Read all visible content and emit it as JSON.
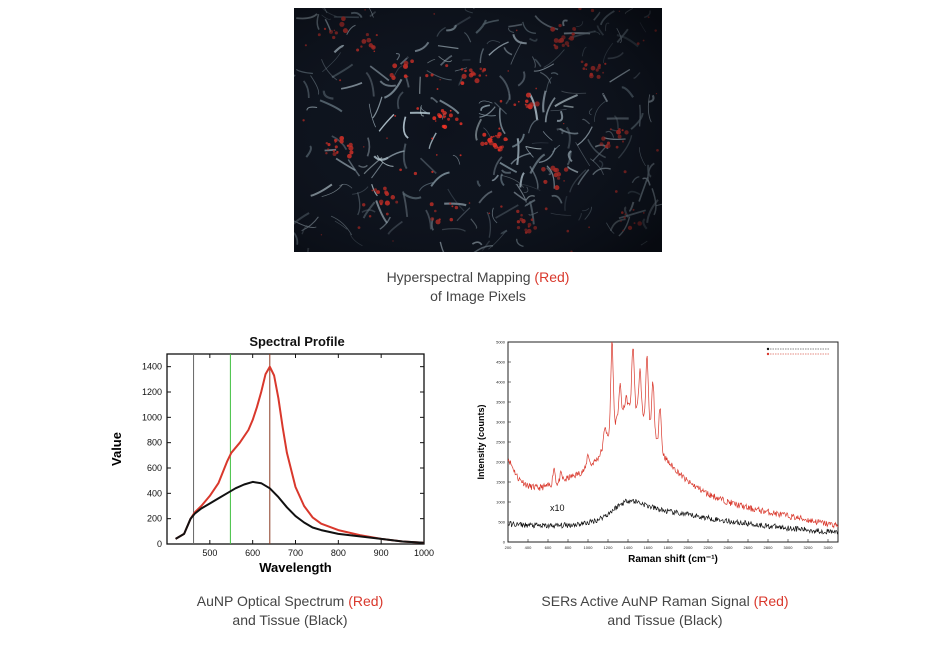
{
  "top_figure": {
    "caption_line1_prefix": "Hyperspectral Mapping ",
    "caption_line1_highlight": "(Red)",
    "caption_line2": "of Image Pixels"
  },
  "left_caption": {
    "line1_prefix": "AuNP Optical Spectrum ",
    "line1_highlight": "(Red)",
    "line2": "and Tissue (Black)"
  },
  "right_caption": {
    "line1_prefix": "SERs Active AuNP Raman Signal ",
    "line1_highlight": "(Red)",
    "line2": "and Tissue (Black)"
  },
  "colors": {
    "red": "#d9382c",
    "black": "#111111",
    "green": "#3fbf3f",
    "brown": "#8a3b22",
    "gray": "#666666"
  },
  "chart_data": [
    {
      "type": "line",
      "title": "Spectral Profile",
      "xlabel": "Wavelength",
      "ylabel": "Value",
      "xlim": [
        400,
        1000
      ],
      "ylim": [
        0,
        1500
      ],
      "xticks": [
        500,
        600,
        700,
        800,
        900,
        1000
      ],
      "yticks": [
        0,
        200,
        400,
        600,
        800,
        1000,
        1200,
        1400
      ],
      "vertical_lines": [
        {
          "x": 462,
          "color": "#666666"
        },
        {
          "x": 548,
          "color": "#3fbf3f"
        },
        {
          "x": 640,
          "color": "#8a3b22"
        }
      ],
      "series": [
        {
          "color": "#d9382c",
          "x": [
            420,
            440,
            455,
            465,
            480,
            500,
            520,
            540,
            550,
            570,
            590,
            600,
            610,
            620,
            630,
            640,
            650,
            660,
            670,
            680,
            700,
            720,
            740,
            760,
            800,
            850,
            900,
            950,
            1000
          ],
          "y": [
            40,
            80,
            200,
            250,
            300,
            380,
            480,
            650,
            720,
            800,
            900,
            980,
            1080,
            1200,
            1340,
            1400,
            1330,
            1150,
            920,
            720,
            450,
            300,
            210,
            160,
            110,
            70,
            40,
            20,
            10
          ]
        },
        {
          "color": "#111111",
          "x": [
            420,
            440,
            455,
            465,
            480,
            500,
            520,
            540,
            560,
            580,
            600,
            620,
            640,
            660,
            680,
            700,
            720,
            740,
            760,
            800,
            850,
            900,
            950,
            1000
          ],
          "y": [
            40,
            80,
            200,
            240,
            280,
            320,
            360,
            400,
            440,
            470,
            490,
            480,
            440,
            370,
            290,
            220,
            170,
            130,
            110,
            80,
            60,
            40,
            20,
            10
          ]
        }
      ]
    },
    {
      "type": "line",
      "xlabel": "Raman shift (cm⁻¹)",
      "ylabel": "Intensity (counts)",
      "annotation": "x10",
      "ylim": [
        0,
        5000
      ],
      "yticks": [
        0,
        500,
        1000,
        1500,
        2000,
        2500,
        3000,
        3500,
        4000,
        4500,
        5000
      ],
      "xlim": [
        200,
        3500
      ],
      "xticks": [
        200,
        400,
        600,
        800,
        1000,
        1200,
        1400,
        1600,
        1800,
        2000,
        2200,
        2400,
        2600,
        2800,
        3000,
        3200,
        3400
      ],
      "legend_position": "top-right",
      "series": [
        {
          "color": "#d9382c",
          "x": [
            200,
            300,
            400,
            500,
            600,
            700,
            800,
            900,
            1000,
            1100,
            1200,
            1300,
            1400,
            1500,
            1600,
            1700,
            1800,
            1900,
            2000,
            2200,
            2400,
            2600,
            2800,
            3000,
            3200,
            3400,
            3500
          ],
          "y": [
            2100,
            1600,
            1400,
            1350,
            1400,
            1450,
            1600,
            1700,
            1850,
            2100,
            2600,
            3100,
            3400,
            3300,
            3000,
            2400,
            2000,
            1750,
            1500,
            1200,
            1000,
            850,
            750,
            650,
            550,
            450,
            420
          ],
          "peaks": [
            {
              "x": 660,
              "y": 1850
            },
            {
              "x": 730,
              "y": 1700
            },
            {
              "x": 1000,
              "y": 2200
            },
            {
              "x": 1170,
              "y": 2900
            },
            {
              "x": 1240,
              "y": 5000
            },
            {
              "x": 1320,
              "y": 3900
            },
            {
              "x": 1380,
              "y": 3600
            },
            {
              "x": 1450,
              "y": 4900
            },
            {
              "x": 1520,
              "y": 4300
            },
            {
              "x": 1590,
              "y": 4600
            },
            {
              "x": 1650,
              "y": 4000
            },
            {
              "x": 1720,
              "y": 3400
            }
          ]
        },
        {
          "color": "#111111",
          "x": [
            200,
            400,
            600,
            800,
            1000,
            1100,
            1200,
            1300,
            1400,
            1500,
            1600,
            1700,
            1800,
            2000,
            2200,
            2400,
            2600,
            2800,
            3000,
            3200,
            3400,
            3500
          ],
          "y": [
            450,
            420,
            400,
            420,
            480,
            560,
            700,
            900,
            1050,
            1000,
            900,
            820,
            760,
            680,
            600,
            520,
            460,
            400,
            350,
            300,
            260,
            240
          ]
        }
      ]
    }
  ]
}
